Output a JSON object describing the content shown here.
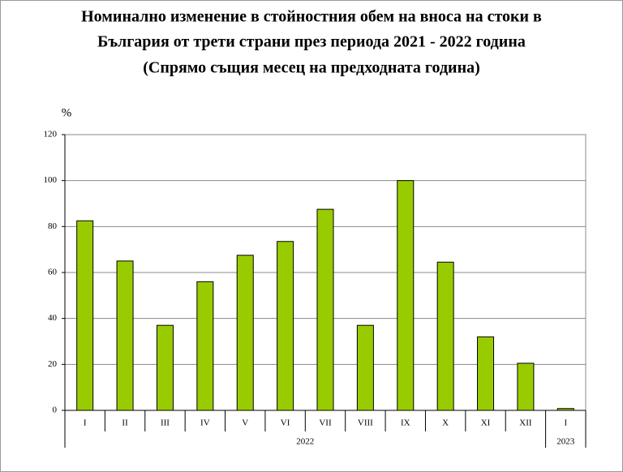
{
  "chart_data": {
    "type": "bar",
    "title": [
      "Номинално изменение в стойностния обем на вноса на стоки в",
      "България от трети страни през периода 2021 - 2022 година"
    ],
    "subtitle": "(Спрямо същия месец на предходната година)",
    "y_label": "%",
    "groups": [
      {
        "label": "2022",
        "categories": [
          "I",
          "II",
          "III",
          "IV",
          "V",
          "VI",
          "VII",
          "VIII",
          "IX",
          "X",
          "XI",
          "XII"
        ],
        "values": [
          82.5,
          65,
          37,
          56,
          67.5,
          73.5,
          87.5,
          37,
          100,
          64.5,
          32,
          20.5
        ]
      },
      {
        "label": "2023",
        "categories": [
          "I"
        ],
        "values": [
          0.8
        ]
      }
    ],
    "color": "#99cc00",
    "ylim": [
      0,
      120
    ],
    "yticks": [
      0,
      20,
      40,
      60,
      80,
      100,
      120
    ],
    "grid": true
  }
}
